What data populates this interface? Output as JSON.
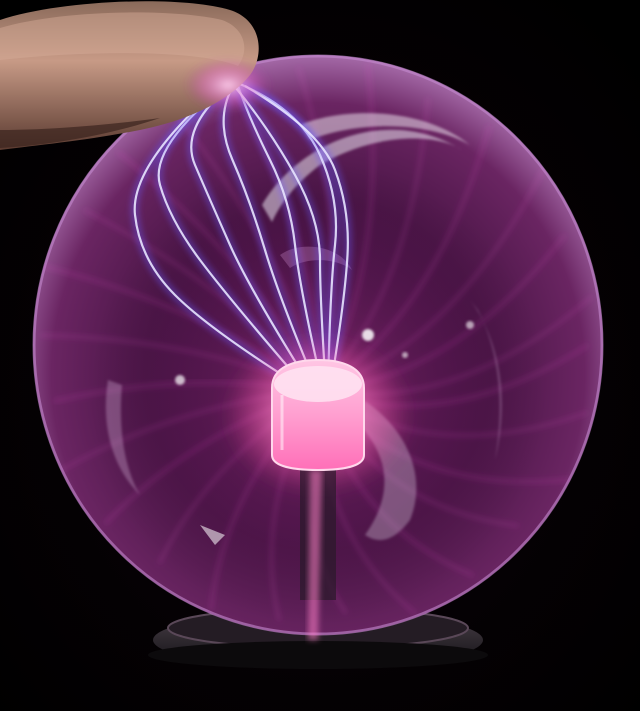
{
  "scene": {
    "subject": "plasma-globe",
    "colors": {
      "background": "#000000",
      "glass_tint": "#7a2a6e",
      "glass_edge": "#c58bd0",
      "filament_core": "#e8e4ff",
      "filament_glow": "#6a5cff",
      "filament_pink": "#e050c8",
      "electrode": "#ff9fd0",
      "electrode_glow": "#ff5fb5",
      "finger_skin": "#c79a86",
      "finger_shadow": "#5a3a30",
      "base_metal": "#3a3a40"
    }
  }
}
